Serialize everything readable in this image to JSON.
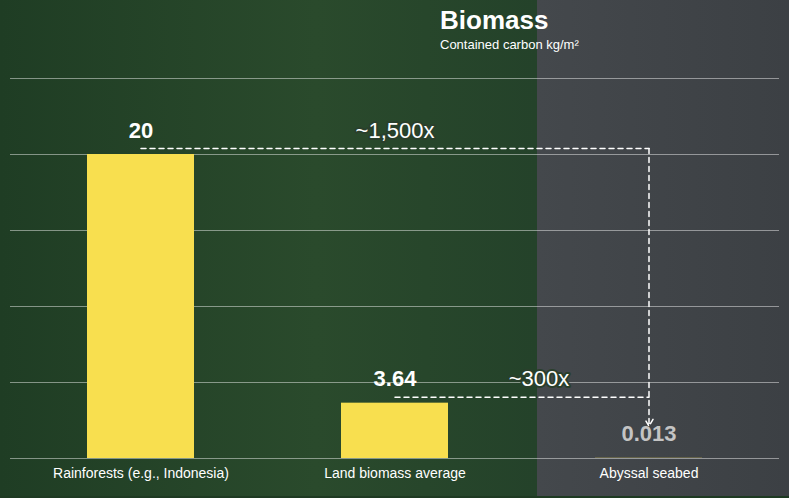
{
  "chart_data": {
    "type": "bar",
    "title": "Biomass",
    "subtitle": "Contained carbon kg/m²",
    "categories": [
      "Rainforests (e.g., Indonesia)",
      "Land biomass average",
      "Abyssal seabed"
    ],
    "values": [
      20,
      3.64,
      0.013
    ],
    "color": "#f8df4f",
    "ylim": [
      0,
      25
    ],
    "yticks": [
      0,
      5,
      10,
      15,
      20,
      25
    ],
    "grid": true,
    "data_labels": true,
    "tick_labels": "x",
    "annotations": [
      "~1,500x",
      "~300x"
    ]
  }
}
